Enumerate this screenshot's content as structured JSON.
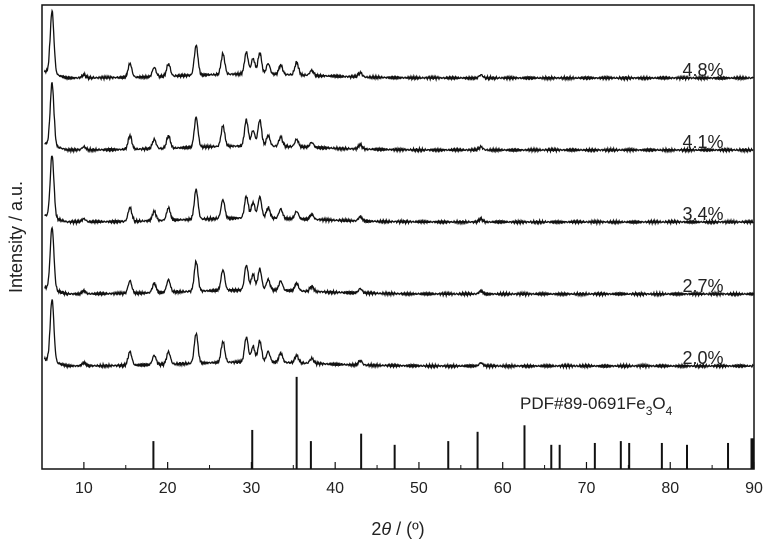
{
  "chart_data": {
    "type": "line",
    "xlabel_prefix": "2",
    "xlabel_theta": "θ",
    "xlabel_suffix": " / (º)",
    "ylabel": "Intensity / a.u.",
    "xlim": [
      5,
      90
    ],
    "xticks": [
      "10",
      "20",
      "30",
      "40",
      "50",
      "60",
      "70",
      "80",
      "90"
    ],
    "peak_positions": [
      6.2,
      10.0,
      15.5,
      18.4,
      20.1,
      23.4,
      26.6,
      29.4,
      30.2,
      31.0,
      32.0,
      33.5,
      35.4,
      37.2,
      43.0,
      57.4
    ],
    "series": [
      {
        "name": "4.8%",
        "peak_intensities": [
          1.0,
          0.05,
          0.22,
          0.15,
          0.2,
          0.48,
          0.33,
          0.35,
          0.25,
          0.34,
          0.17,
          0.15,
          0.2,
          0.08,
          0.07,
          0.05
        ]
      },
      {
        "name": "4.1%",
        "peak_intensities": [
          1.0,
          0.05,
          0.22,
          0.15,
          0.2,
          0.48,
          0.33,
          0.42,
          0.25,
          0.42,
          0.17,
          0.15,
          0.12,
          0.08,
          0.07,
          0.05
        ]
      },
      {
        "name": "3.4%",
        "peak_intensities": [
          1.0,
          0.05,
          0.22,
          0.15,
          0.2,
          0.48,
          0.3,
          0.35,
          0.25,
          0.34,
          0.17,
          0.15,
          0.12,
          0.08,
          0.07,
          0.05
        ]
      },
      {
        "name": "2.7%",
        "peak_intensities": [
          1.0,
          0.05,
          0.2,
          0.15,
          0.2,
          0.48,
          0.33,
          0.4,
          0.25,
          0.34,
          0.17,
          0.15,
          0.12,
          0.08,
          0.07,
          0.05
        ]
      },
      {
        "name": "2.0%",
        "peak_intensities": [
          1.0,
          0.05,
          0.22,
          0.15,
          0.2,
          0.48,
          0.33,
          0.4,
          0.25,
          0.34,
          0.17,
          0.15,
          0.12,
          0.08,
          0.07,
          0.05
        ]
      }
    ],
    "reference": {
      "label_prefix": "PDF#89-0691Fe",
      "label_sub1": "3",
      "label_mid": "O",
      "label_sub2": "4",
      "positions": [
        18.3,
        30.1,
        35.4,
        37.1,
        43.1,
        47.1,
        53.5,
        57.0,
        62.6,
        65.8,
        66.8,
        71.0,
        74.1,
        75.1,
        79.0,
        82.0,
        86.9,
        89.7,
        89.9
      ],
      "intensities": [
        0.3,
        0.42,
        0.99,
        0.3,
        0.38,
        0.26,
        0.3,
        0.4,
        0.47,
        0.26,
        0.26,
        0.28,
        0.3,
        0.28,
        0.28,
        0.26,
        0.28,
        0.33,
        0.33
      ]
    }
  }
}
